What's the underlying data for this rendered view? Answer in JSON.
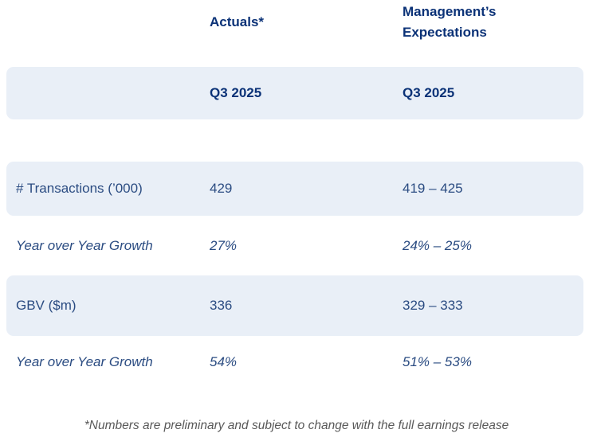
{
  "colors": {
    "header_navy": "#0b3277",
    "body_navy": "#2b4c82",
    "stripe_bg": "#e9eff7",
    "footnote_gray": "#595959",
    "page_bg": "#ffffff"
  },
  "table": {
    "column_headers": {
      "actuals": "Actuals*",
      "expectations": "Management’s Expectations"
    },
    "subheaders": {
      "actuals_period": "Q3 2025",
      "expectations_period": "Q3 2025"
    },
    "rows": [
      {
        "label": "# Transactions (’000)",
        "actual": "429",
        "expectation": "419 – 425",
        "style": "striped"
      },
      {
        "label": "Year over Year Growth",
        "actual": "27%",
        "expectation": "24% – 25%",
        "style": "italic"
      },
      {
        "label": "GBV ($m)",
        "actual": "336",
        "expectation": "329 – 333",
        "style": "striped"
      },
      {
        "label": "Year over Year Growth",
        "actual": "54%",
        "expectation": "51% – 53%",
        "style": "italic"
      }
    ],
    "footnote": "*Numbers are preliminary and subject to change with the full earnings release"
  }
}
